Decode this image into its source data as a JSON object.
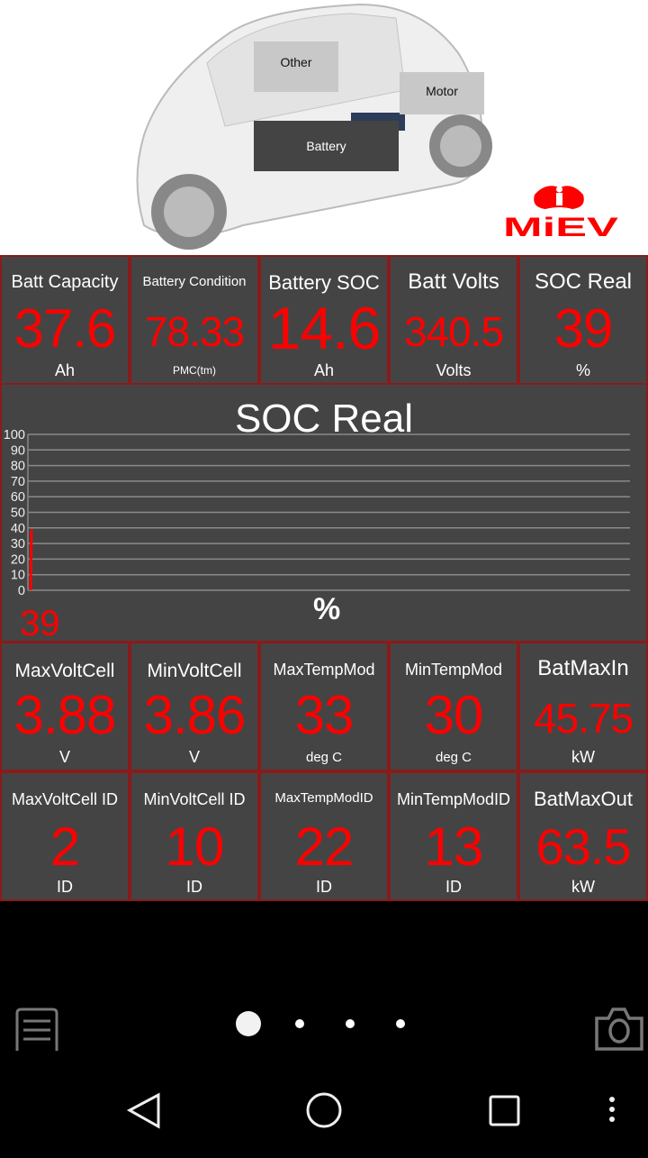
{
  "hero": {
    "buttons": {
      "other": "Other",
      "motor": "Motor",
      "battery": "Battery"
    },
    "logo_text": "MiEV"
  },
  "row1": [
    {
      "title": "Batt Capacity",
      "value": "37.6",
      "unit": "Ah"
    },
    {
      "title": "Battery Condition",
      "value": "78.33",
      "unit": "PMC(tm)"
    },
    {
      "title": "Battery SOC",
      "value": "14.6",
      "unit": "Ah"
    },
    {
      "title": "Batt Volts",
      "value": "340.5",
      "unit": "Volts"
    },
    {
      "title": "SOC Real",
      "value": "39",
      "unit": "%"
    }
  ],
  "chart_data": {
    "type": "bar",
    "title": "SOC Real",
    "values": [
      39
    ],
    "value_label": "39",
    "unit_label": "%",
    "ylim": [
      0,
      100
    ],
    "yticks": [
      "0",
      "10",
      "20",
      "30",
      "40",
      "50",
      "60",
      "70",
      "80",
      "90",
      "100"
    ],
    "grid": true,
    "bar_color": "#ff0000"
  },
  "row2": [
    {
      "title": "MaxVoltCell",
      "value": "3.88",
      "unit": "V"
    },
    {
      "title": "MinVoltCell",
      "value": "3.86",
      "unit": "V"
    },
    {
      "title": "MaxTempMod",
      "value": "33",
      "unit": "deg C"
    },
    {
      "title": "MinTempMod",
      "value": "30",
      "unit": "deg C"
    },
    {
      "title": "BatMaxIn",
      "value": "45.75",
      "unit": "kW"
    }
  ],
  "row3": [
    {
      "title": "MaxVoltCell ID",
      "value": "2",
      "unit": "ID"
    },
    {
      "title": "MinVoltCell ID",
      "value": "10",
      "unit": "ID"
    },
    {
      "title": "MaxTempModID",
      "value": "22",
      "unit": "ID"
    },
    {
      "title": "MinTempModID",
      "value": "13",
      "unit": "ID"
    },
    {
      "title": "BatMaxOut",
      "value": "63.5",
      "unit": "kW"
    }
  ],
  "pager": {
    "pages": 4,
    "current": 1
  },
  "icons": {
    "menu": "list-menu-icon",
    "camera": "camera-icon",
    "back": "back-icon",
    "home": "home-icon",
    "recents": "recents-icon",
    "overflow": "more-vert-icon"
  },
  "colors": {
    "tile_bg": "#444444",
    "border": "#8b1a1a",
    "value": "#ff0000",
    "brand": "#ff0000"
  }
}
